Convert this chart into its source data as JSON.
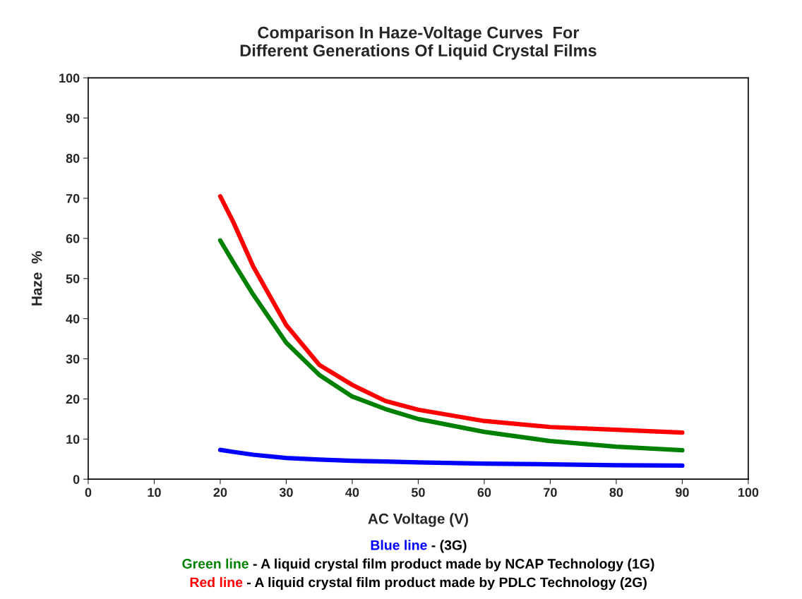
{
  "chart_data": {
    "type": "line",
    "title": "Comparison In Haze-Voltage Curves  For\nDifferent Generations Of Liquid Crystal Films",
    "xlabel": "AC Voltage (V)",
    "ylabel": "Haze  %",
    "x": [
      20,
      22,
      25,
      30,
      35,
      40,
      45,
      50,
      60,
      70,
      80,
      90
    ],
    "series": [
      {
        "name": "Blue line",
        "color": "#0000ff",
        "values": [
          7.3,
          6.8,
          6.1,
          5.3,
          4.9,
          4.6,
          4.4,
          4.2,
          3.9,
          3.7,
          3.5,
          3.4
        ]
      },
      {
        "name": "Green line",
        "color": "#008000",
        "values": [
          59.5,
          54,
          46,
          34,
          26,
          20.6,
          17.5,
          15,
          11.8,
          9.5,
          8.1,
          7.2
        ]
      },
      {
        "name": "Red line",
        "color": "#ff0000",
        "values": [
          70.5,
          64,
          53,
          38.4,
          28.5,
          23.5,
          19.5,
          17.3,
          14.5,
          13,
          12.3,
          11.6
        ]
      }
    ],
    "annotations": [
      " - (3G)",
      " - A liquid crystal film product made by NCAP Technology (1G)",
      " - A liquid crystal film product made by PDLC Technology (2G)"
    ],
    "xlim": [
      0,
      100
    ],
    "ylim": [
      0,
      100
    ],
    "xticks": [
      0,
      10,
      20,
      30,
      40,
      50,
      60,
      70,
      80,
      90,
      100
    ],
    "yticks": [
      0,
      10,
      20,
      30,
      40,
      50,
      60,
      70,
      80,
      90,
      100
    ],
    "grid": false,
    "legend": false
  }
}
